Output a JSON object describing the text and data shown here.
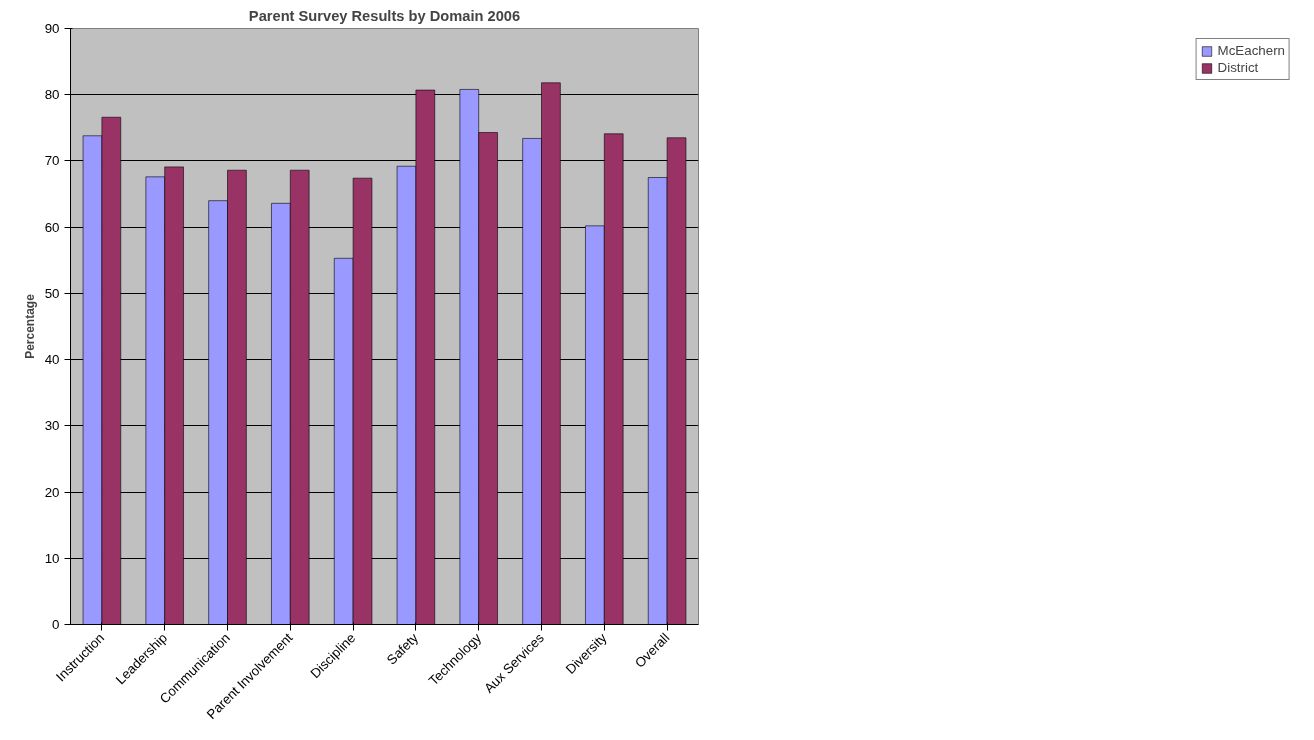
{
  "chart_data": {
    "type": "bar",
    "title": "Parent Survey Results by Domain 2006",
    "ylabel": "Percentage",
    "categories": [
      "Instruction",
      "Leadership",
      "Communication",
      "Parent Involvement",
      "Discipline",
      "Safety",
      "Technology",
      "Aux Services",
      "Diversity",
      "Overall"
    ],
    "series": [
      {
        "name": "McEachern",
        "color": "#9999ff",
        "values": [
          73.8,
          67.6,
          64.0,
          63.6,
          55.3,
          69.2,
          80.8,
          73.4,
          60.2,
          67.5
        ]
      },
      {
        "name": "District",
        "color": "#993366",
        "values": [
          76.6,
          69.1,
          68.6,
          68.6,
          67.4,
          80.7,
          74.3,
          81.8,
          74.1,
          73.5
        ]
      }
    ],
    "ylim": [
      0,
      90
    ],
    "yticks": [
      0,
      10,
      20,
      30,
      40,
      50,
      60,
      70,
      80,
      90
    ],
    "grid": "y",
    "legend": "right"
  }
}
